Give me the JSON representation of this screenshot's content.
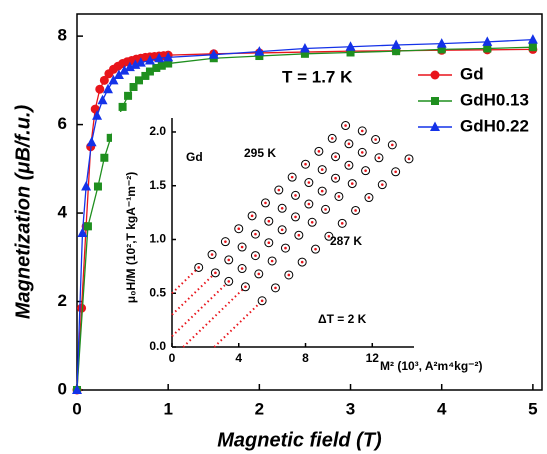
{
  "chart_data": [
    {
      "type": "line",
      "xlabel": "Magnetic field (T)",
      "ylabel": "Magnetization (μB/f.u.)",
      "annotation": "T = 1.7 K",
      "xlim": [
        0,
        5.1
      ],
      "xticks": [
        0,
        1,
        2,
        3,
        4,
        5
      ],
      "ylim": [
        0,
        8.5
      ],
      "yticks": [
        0,
        2,
        4,
        6,
        8
      ],
      "legend": "upper right",
      "series": [
        {
          "name": "Gd",
          "color": "#e8141b",
          "marker": "circle",
          "x": [
            0,
            0.05,
            0.1,
            0.15,
            0.2,
            0.25,
            0.3,
            0.35,
            0.4,
            0.45,
            0.5,
            0.55,
            0.6,
            0.65,
            0.7,
            0.75,
            0.8,
            0.85,
            0.9,
            0.95,
            1.0,
            1.5,
            2,
            2.5,
            3,
            3.5,
            4,
            4.5,
            5
          ],
          "values": [
            0,
            1.85,
            3.7,
            5.5,
            6.35,
            6.8,
            7.0,
            7.15,
            7.25,
            7.32,
            7.38,
            7.42,
            7.45,
            7.48,
            7.5,
            7.52,
            7.53,
            7.54,
            7.55,
            7.56,
            7.57,
            7.6,
            7.62,
            7.64,
            7.66,
            7.67,
            7.68,
            7.69,
            7.7
          ]
        },
        {
          "name": "GdH0.13",
          "color": "#1f8f1f",
          "marker": "square",
          "x": [
            0,
            0.12,
            0.23,
            0.3,
            0.37,
            0.44,
            0.5,
            0.56,
            0.62,
            0.68,
            0.75,
            0.8,
            0.87,
            0.93,
            1.0,
            1.5,
            2,
            2.5,
            3,
            3.5,
            4,
            4.5,
            5
          ],
          "values": [
            0,
            3.7,
            4.6,
            5.25,
            5.7,
            6.1,
            6.4,
            6.65,
            6.85,
            7.0,
            7.1,
            7.2,
            7.28,
            7.33,
            7.38,
            7.5,
            7.55,
            7.6,
            7.63,
            7.66,
            7.7,
            7.72,
            7.75
          ]
        },
        {
          "name": "GdH0.22",
          "color": "#1432e8",
          "marker": "triangle",
          "x": [
            0,
            0.06,
            0.1,
            0.16,
            0.22,
            0.28,
            0.34,
            0.4,
            0.46,
            0.52,
            0.58,
            0.64,
            0.7,
            0.8,
            0.9,
            1.0,
            1.5,
            2,
            2.5,
            3,
            3.5,
            4,
            4.5,
            5
          ],
          "values": [
            0,
            3.55,
            4.6,
            5.6,
            6.2,
            6.55,
            6.8,
            7.0,
            7.12,
            7.22,
            7.3,
            7.35,
            7.4,
            7.45,
            7.5,
            7.52,
            7.58,
            7.65,
            7.72,
            7.76,
            7.8,
            7.83,
            7.87,
            7.92
          ]
        }
      ]
    },
    {
      "type": "scatter",
      "xlabel": "M² (10³, A²m⁴kg⁻²)",
      "ylabel": "μ₀H/M (10²,T kgA⁻¹m⁻²)",
      "annotations": [
        "Gd",
        "295 K",
        "287 K",
        "ΔT = 2 K"
      ],
      "xlim": [
        0,
        14.5
      ],
      "xticks": [
        0,
        4,
        8,
        12
      ],
      "ylim": [
        0,
        2.13
      ],
      "yticks": [
        {
          "value": 0,
          "label": "0.0"
        },
        0.5,
        {
          "value": 1,
          "label": "1.0"
        },
        1.5,
        {
          "value": 2,
          "label": "2.0"
        }
      ],
      "fit_color": "#e8141b",
      "series": [
        {
          "x": [
            1.6,
            2.4,
            3.2,
            4.0,
            4.8,
            5.6,
            6.4,
            7.2,
            8.0,
            8.8,
            9.6,
            10.4
          ],
          "values": [
            0.74,
            0.86,
            0.98,
            1.1,
            1.22,
            1.34,
            1.46,
            1.58,
            1.7,
            1.82,
            1.94,
            2.06
          ],
          "fit_x": [
            0,
            1.6
          ],
          "fit_values": [
            0.5,
            0.74
          ]
        },
        {
          "x": [
            2.6,
            3.4,
            4.2,
            5.0,
            5.8,
            6.6,
            7.4,
            8.2,
            9.0,
            9.8,
            10.6,
            11.4
          ],
          "values": [
            0.69,
            0.81,
            0.93,
            1.05,
            1.17,
            1.29,
            1.41,
            1.53,
            1.65,
            1.77,
            1.89,
            2.01
          ],
          "fit_x": [
            0,
            2.6
          ],
          "fit_values": [
            0.3,
            0.69
          ]
        },
        {
          "x": [
            3.4,
            4.2,
            5.0,
            5.8,
            6.6,
            7.4,
            8.2,
            9.0,
            9.8,
            10.6,
            11.4,
            12.2
          ],
          "values": [
            0.61,
            0.73,
            0.85,
            0.97,
            1.09,
            1.21,
            1.33,
            1.45,
            1.57,
            1.69,
            1.81,
            1.93
          ],
          "fit_x": [
            0,
            3.4
          ],
          "fit_values": [
            0.1,
            0.61
          ]
        },
        {
          "x": [
            4.4,
            5.2,
            6.0,
            6.8,
            7.6,
            8.4,
            9.2,
            10.0,
            10.8,
            11.6,
            12.4,
            13.2
          ],
          "values": [
            0.56,
            0.68,
            0.8,
            0.92,
            1.04,
            1.16,
            1.28,
            1.4,
            1.52,
            1.64,
            1.76,
            1.88
          ],
          "fit_x": [
            0.67,
            4.4
          ],
          "fit_values": [
            0,
            0.56
          ]
        },
        {
          "x": [
            5.4,
            6.2,
            7.0,
            7.8,
            8.6,
            9.4,
            10.2,
            11.0,
            11.8,
            12.6,
            13.4,
            14.2
          ],
          "values": [
            0.43,
            0.55,
            0.67,
            0.79,
            0.91,
            1.03,
            1.15,
            1.27,
            1.39,
            1.51,
            1.63,
            1.75
          ],
          "fit_x": [
            2.53,
            5.4
          ],
          "fit_values": [
            0,
            0.43
          ]
        }
      ]
    }
  ]
}
